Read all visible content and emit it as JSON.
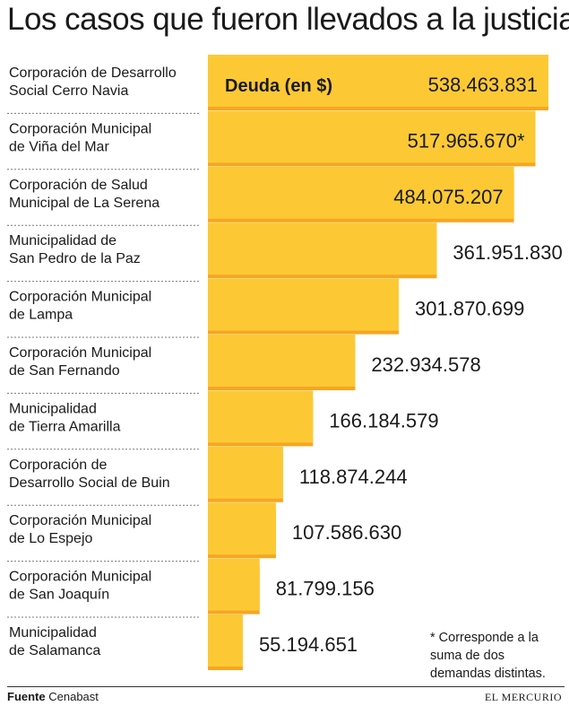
{
  "title": "Los casos que fueron llevados a la justicia",
  "chart_data": {
    "type": "bar",
    "orientation": "horizontal",
    "title": "Los casos que fueron llevados a la justicia",
    "value_label": "Deuda (en $)",
    "categories": [
      [
        "Corporación de Desarrollo",
        "Social Cerro Navia"
      ],
      [
        "Corporación Municipal",
        "de Viña del Mar"
      ],
      [
        "Corporación de Salud",
        "Municipal de La Serena"
      ],
      [
        "Municipalidad de",
        "San Pedro de la Paz"
      ],
      [
        "Corporación Municipal",
        "de Lampa"
      ],
      [
        "Corporación Municipal",
        "de San Fernando"
      ],
      [
        "Municipalidad",
        "de Tierra Amarilla"
      ],
      [
        "Corporación de",
        "Desarrollo Social de Buin"
      ],
      [
        "Corporación Municipal",
        "de Lo Espejo"
      ],
      [
        "Corporación Municipal",
        "de San Joaquín"
      ],
      [
        "Municipalidad",
        "de Salamanca"
      ]
    ],
    "values": [
      538463831,
      517965670,
      484075207,
      361951830,
      301870699,
      232934578,
      166184579,
      118874244,
      107586630,
      81799156,
      55194651
    ],
    "value_labels": [
      "538.463.831",
      "517.965.670*",
      "484.075.207",
      "361.951.830",
      "301.870.699",
      "232.934.578",
      "166.184.579",
      "118.874.244",
      "107.586.630",
      "81.799.156",
      "55.194.651"
    ],
    "bar_color": "#FCC935",
    "bar_shadow_color": "#F6A623",
    "xlim": [
      0,
      538463831
    ]
  },
  "footnote": "* Corresponde a la suma de dos demandas distintas.",
  "source": {
    "label": "Fuente",
    "value": "Cenabast"
  },
  "brand": "EL MERCURIO"
}
